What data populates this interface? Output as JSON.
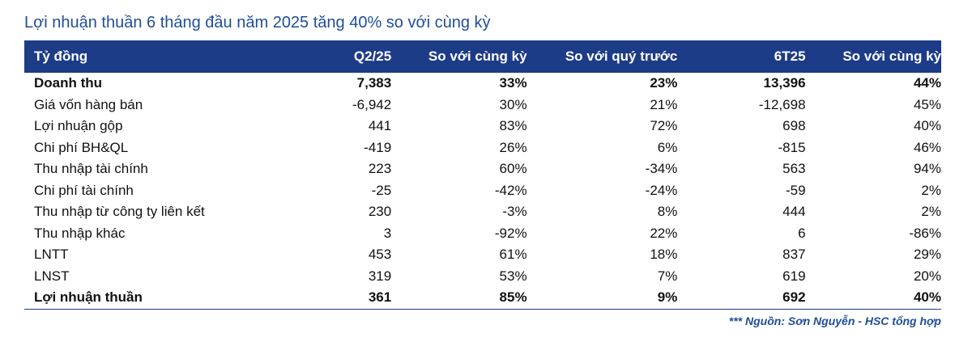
{
  "title": "Lợi nhuận thuần 6 tháng đầu năm 2025 tăng 40% so với cùng kỳ",
  "table": {
    "header": [
      "Tỷ đồng",
      "Q2/25",
      "So với cùng kỳ",
      "So với quý trước",
      "6T25",
      "So với cùng kỳ"
    ],
    "rows": [
      [
        "Doanh thu",
        "7,383",
        "33%",
        "23%",
        "13,396",
        "44%"
      ],
      [
        "Giá vốn hàng bán",
        "-6,942",
        "30%",
        "21%",
        "-12,698",
        "45%"
      ],
      [
        "Lợi nhuận gộp",
        "441",
        "83%",
        "72%",
        "698",
        "40%"
      ],
      [
        "Chi phí BH&QL",
        "-419",
        "26%",
        "6%",
        "-815",
        "46%"
      ],
      [
        "Thu nhập tài chính",
        "223",
        "60%",
        "-34%",
        "563",
        "94%"
      ],
      [
        "Chi phí tài chính",
        "-25",
        "-42%",
        "-24%",
        "-59",
        "2%"
      ],
      [
        "Thu nhập từ công ty liên kết",
        "230",
        "-3%",
        "8%",
        "444",
        "2%"
      ],
      [
        "Thu nhập khác",
        "3",
        "-92%",
        "22%",
        "6",
        "-86%"
      ],
      [
        "LNTT",
        "453",
        "61%",
        "18%",
        "837",
        "29%"
      ],
      [
        "LNST",
        "319",
        "53%",
        "7%",
        "619",
        "20%"
      ],
      [
        "Lợi nhuận thuần",
        "361",
        "85%",
        "9%",
        "692",
        "40%"
      ]
    ]
  },
  "source": "*** Nguồn: Sơn Nguyễn - HSC tổng hợp"
}
